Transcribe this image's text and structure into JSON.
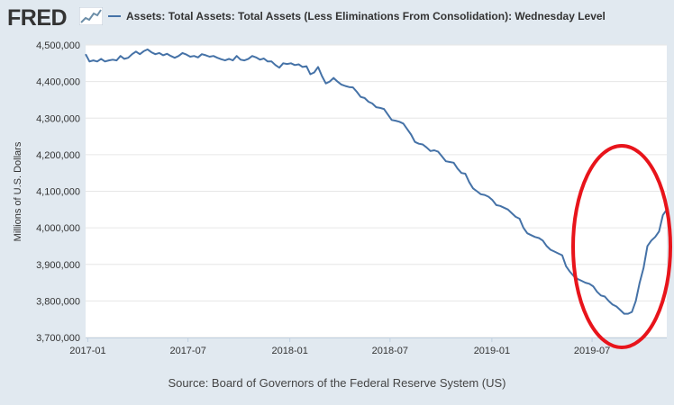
{
  "header": {
    "logo_text": "FRED",
    "legend_label": "Assets: Total Assets: Total Assets (Less Eliminations From Consolidation): Wednesday Level"
  },
  "source_text": "Source: Board of Governors of the Federal Reserve System (US)",
  "colors": {
    "background": "#e1e9f0",
    "plot_background": "#ffffff",
    "series_line": "#4572a7",
    "annotation_ellipse": "#e8141b"
  },
  "chart_data": {
    "type": "line",
    "title": "",
    "xlabel": "",
    "ylabel": "Millions of U.S. Dollars",
    "ylim": [
      3700000,
      4500000
    ],
    "xlim": [
      "2016-12-28",
      "2019-11-13"
    ],
    "y_ticks": [
      "3,700,000",
      "3,800,000",
      "3,900,000",
      "4,000,000",
      "4,100,000",
      "4,200,000",
      "4,300,000",
      "4,400,000",
      "4,500,000"
    ],
    "x_ticks": [
      "2017-01",
      "2017-07",
      "2018-01",
      "2018-07",
      "2019-01",
      "2019-07"
    ],
    "grid": true,
    "annotation": "red ellipse circling the late-2019 rise",
    "series": [
      {
        "name": "Assets: Total Assets: Total Assets (Less Eliminations From Consolidation): Wednesday Level",
        "x": [
          "2016-12-28",
          "2017-01-04",
          "2017-01-11",
          "2017-01-18",
          "2017-01-25",
          "2017-02-01",
          "2017-02-08",
          "2017-02-15",
          "2017-02-22",
          "2017-03-01",
          "2017-03-08",
          "2017-03-15",
          "2017-03-22",
          "2017-03-29",
          "2017-04-05",
          "2017-04-12",
          "2017-04-19",
          "2017-04-26",
          "2017-05-03",
          "2017-05-10",
          "2017-05-17",
          "2017-05-24",
          "2017-05-31",
          "2017-06-07",
          "2017-06-14",
          "2017-06-21",
          "2017-06-28",
          "2017-07-05",
          "2017-07-12",
          "2017-07-19",
          "2017-07-26",
          "2017-08-02",
          "2017-08-09",
          "2017-08-16",
          "2017-08-23",
          "2017-08-30",
          "2017-09-06",
          "2017-09-13",
          "2017-09-20",
          "2017-09-27",
          "2017-10-04",
          "2017-10-11",
          "2017-10-18",
          "2017-10-25",
          "2017-11-01",
          "2017-11-08",
          "2017-11-15",
          "2017-11-22",
          "2017-11-29",
          "2017-12-06",
          "2017-12-13",
          "2017-12-20",
          "2017-12-27",
          "2018-01-03",
          "2018-01-10",
          "2018-01-17",
          "2018-01-24",
          "2018-01-31",
          "2018-02-07",
          "2018-02-14",
          "2018-02-21",
          "2018-02-28",
          "2018-03-07",
          "2018-03-14",
          "2018-03-21",
          "2018-03-28",
          "2018-04-04",
          "2018-04-11",
          "2018-04-18",
          "2018-04-25",
          "2018-05-02",
          "2018-05-09",
          "2018-05-16",
          "2018-05-23",
          "2018-05-30",
          "2018-06-06",
          "2018-06-13",
          "2018-06-20",
          "2018-06-27",
          "2018-07-04",
          "2018-07-11",
          "2018-07-18",
          "2018-07-25",
          "2018-08-01",
          "2018-08-08",
          "2018-08-15",
          "2018-08-22",
          "2018-08-29",
          "2018-09-05",
          "2018-09-12",
          "2018-09-19",
          "2018-09-26",
          "2018-10-03",
          "2018-10-10",
          "2018-10-17",
          "2018-10-24",
          "2018-10-31",
          "2018-11-07",
          "2018-11-14",
          "2018-11-21",
          "2018-11-28",
          "2018-12-05",
          "2018-12-12",
          "2018-12-19",
          "2018-12-26",
          "2019-01-02",
          "2019-01-09",
          "2019-01-16",
          "2019-01-23",
          "2019-01-30",
          "2019-02-06",
          "2019-02-13",
          "2019-02-20",
          "2019-02-27",
          "2019-03-06",
          "2019-03-13",
          "2019-03-20",
          "2019-03-27",
          "2019-04-03",
          "2019-04-10",
          "2019-04-17",
          "2019-04-24",
          "2019-05-01",
          "2019-05-08",
          "2019-05-15",
          "2019-05-22",
          "2019-05-29",
          "2019-06-05",
          "2019-06-12",
          "2019-06-19",
          "2019-06-26",
          "2019-07-03",
          "2019-07-10",
          "2019-07-17",
          "2019-07-24",
          "2019-07-31",
          "2019-08-07",
          "2019-08-14",
          "2019-08-21",
          "2019-08-28",
          "2019-09-04",
          "2019-09-11",
          "2019-09-18",
          "2019-09-25",
          "2019-10-02",
          "2019-10-09",
          "2019-10-16",
          "2019-10-23",
          "2019-10-30",
          "2019-11-06",
          "2019-11-13"
        ],
        "values": [
          4475000,
          4455000,
          4458000,
          4455000,
          4462000,
          4455000,
          4458000,
          4460000,
          4458000,
          4470000,
          4462000,
          4465000,
          4475000,
          4482000,
          4475000,
          4483000,
          4488000,
          4480000,
          4475000,
          4478000,
          4472000,
          4476000,
          4470000,
          4465000,
          4470000,
          4478000,
          4474000,
          4468000,
          4470000,
          4466000,
          4475000,
          4472000,
          4468000,
          4470000,
          4465000,
          4461000,
          4458000,
          4462000,
          4458000,
          4470000,
          4460000,
          4458000,
          4462000,
          4470000,
          4466000,
          4460000,
          4463000,
          4455000,
          4455000,
          4445000,
          4438000,
          4450000,
          4448000,
          4450000,
          4445000,
          4447000,
          4440000,
          4442000,
          4420000,
          4425000,
          4440000,
          4415000,
          4395000,
          4400000,
          4410000,
          4400000,
          4392000,
          4388000,
          4385000,
          4384000,
          4372000,
          4358000,
          4355000,
          4345000,
          4340000,
          4330000,
          4328000,
          4325000,
          4310000,
          4295000,
          4293000,
          4290000,
          4285000,
          4270000,
          4255000,
          4235000,
          4230000,
          4228000,
          4220000,
          4210000,
          4212000,
          4208000,
          4195000,
          4182000,
          4180000,
          4178000,
          4162000,
          4150000,
          4148000,
          4125000,
          4108000,
          4100000,
          4092000,
          4090000,
          4085000,
          4076000,
          4062000,
          4060000,
          4055000,
          4050000,
          4040000,
          4030000,
          4025000,
          4000000,
          3985000,
          3980000,
          3975000,
          3972000,
          3965000,
          3950000,
          3940000,
          3935000,
          3930000,
          3925000,
          3895000,
          3880000,
          3868000,
          3860000,
          3855000,
          3850000,
          3847000,
          3840000,
          3825000,
          3815000,
          3812000,
          3800000,
          3790000,
          3785000,
          3775000,
          3765000,
          3765000,
          3770000,
          3800000,
          3850000,
          3890000,
          3950000,
          3965000,
          3975000,
          3990000,
          4035000,
          4050000
        ]
      }
    ]
  }
}
